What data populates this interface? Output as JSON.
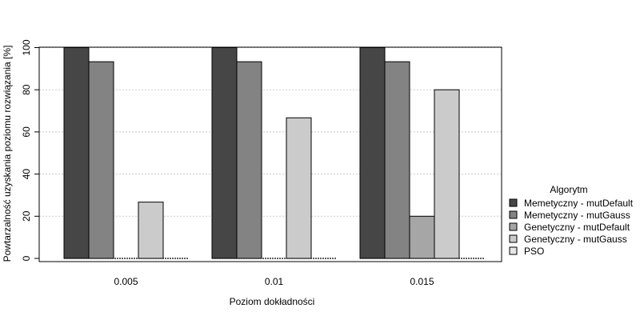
{
  "chart_data": {
    "type": "bar",
    "xlabel": "Poziom dokładności",
    "ylabel": "Powtarzalność uzyskania poziomu rozwiązania [%]",
    "categories": [
      "0.005",
      "0.01",
      "0.015"
    ],
    "ylim": [
      0,
      100
    ],
    "yticks": [
      0,
      20,
      40,
      60,
      80,
      100
    ],
    "grid": true,
    "legend_title": "Algorytm",
    "legend_position": "right",
    "series": [
      {
        "name": "Memetyczny - mutDefault",
        "color": "#464646",
        "values": [
          100,
          100,
          100
        ]
      },
      {
        "name": "Memetyczny - mutGauss",
        "color": "#838383",
        "values": [
          93.3,
          93.3,
          93.3
        ]
      },
      {
        "name": "Genetyczny - mutDefault",
        "color": "#a6a6a6",
        "values": [
          0,
          0,
          20
        ]
      },
      {
        "name": "Genetyczny - mutGauss",
        "color": "#cbcbcb",
        "values": [
          26.7,
          66.7,
          80
        ]
      },
      {
        "name": "PSO",
        "color": "#e6e6e6",
        "values": [
          0,
          0,
          0
        ]
      }
    ]
  }
}
